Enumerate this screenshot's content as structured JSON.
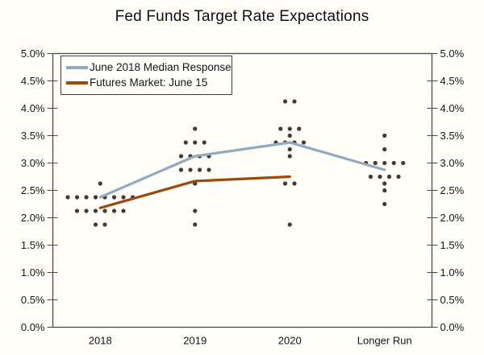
{
  "title": "Fed Funds Target Rate Expectations",
  "colors": {
    "background": "#FFFEF8",
    "median_line": "#90AABF",
    "futures_line": "#9C4A0B",
    "dots": "#453931",
    "axis": "#4A4A4A",
    "text": "#14141C",
    "legend_border": "#3F3F3F"
  },
  "chart_data": {
    "type": "line",
    "title": "Fed Funds Target Rate Expectations",
    "xlabel": "",
    "ylabel": "",
    "categories": [
      "2018",
      "2019",
      "2020",
      "Longer Run"
    ],
    "y_axis": {
      "min": 0,
      "max": 5,
      "step": 0.5,
      "unit": "%",
      "tick_labels": [
        "5.0%",
        "4.5%",
        "4.0%",
        "3.5%",
        "3.0%",
        "2.5%",
        "2.0%",
        "1.5%",
        "1.0%",
        "0.5%",
        "0.0%"
      ],
      "mirrored_right_axis": true,
      "grid": false
    },
    "legend": {
      "position": "top-left"
    },
    "series": [
      {
        "name": "June 2018 Median Response",
        "color_key": "median_line",
        "values": [
          2.375,
          3.125,
          3.375,
          2.875
        ]
      },
      {
        "name": "Futures Market: June 15",
        "color_key": "futures_line",
        "values": [
          2.18,
          2.67,
          2.75,
          null
        ]
      }
    ],
    "dot_plot": [
      {
        "category": "2018",
        "points": [
          {
            "value": 2.625,
            "count": 1
          },
          {
            "value": 2.375,
            "count": 8
          },
          {
            "value": 2.125,
            "count": 6
          },
          {
            "value": 1.875,
            "count": 2
          }
        ]
      },
      {
        "category": "2019",
        "points": [
          {
            "value": 3.625,
            "count": 1
          },
          {
            "value": 3.375,
            "count": 3
          },
          {
            "value": 3.125,
            "count": 4
          },
          {
            "value": 2.875,
            "count": 4
          },
          {
            "value": 2.625,
            "count": 1
          },
          {
            "value": 2.125,
            "count": 1
          },
          {
            "value": 1.875,
            "count": 1
          }
        ]
      },
      {
        "category": "2020",
        "points": [
          {
            "value": 4.125,
            "count": 2
          },
          {
            "value": 3.625,
            "count": 3
          },
          {
            "value": 3.5,
            "count": 1
          },
          {
            "value": 3.375,
            "count": 4
          },
          {
            "value": 3.25,
            "count": 1
          },
          {
            "value": 3.125,
            "count": 1
          },
          {
            "value": 2.625,
            "count": 2
          },
          {
            "value": 1.875,
            "count": 1
          }
        ]
      },
      {
        "category": "Longer Run",
        "points": [
          {
            "value": 3.5,
            "count": 1
          },
          {
            "value": 3.25,
            "count": 1
          },
          {
            "value": 3.0,
            "count": 5
          },
          {
            "value": 2.75,
            "count": 4
          },
          {
            "value": 2.625,
            "count": 1
          },
          {
            "value": 2.5,
            "count": 1
          },
          {
            "value": 2.25,
            "count": 1
          }
        ]
      }
    ]
  }
}
